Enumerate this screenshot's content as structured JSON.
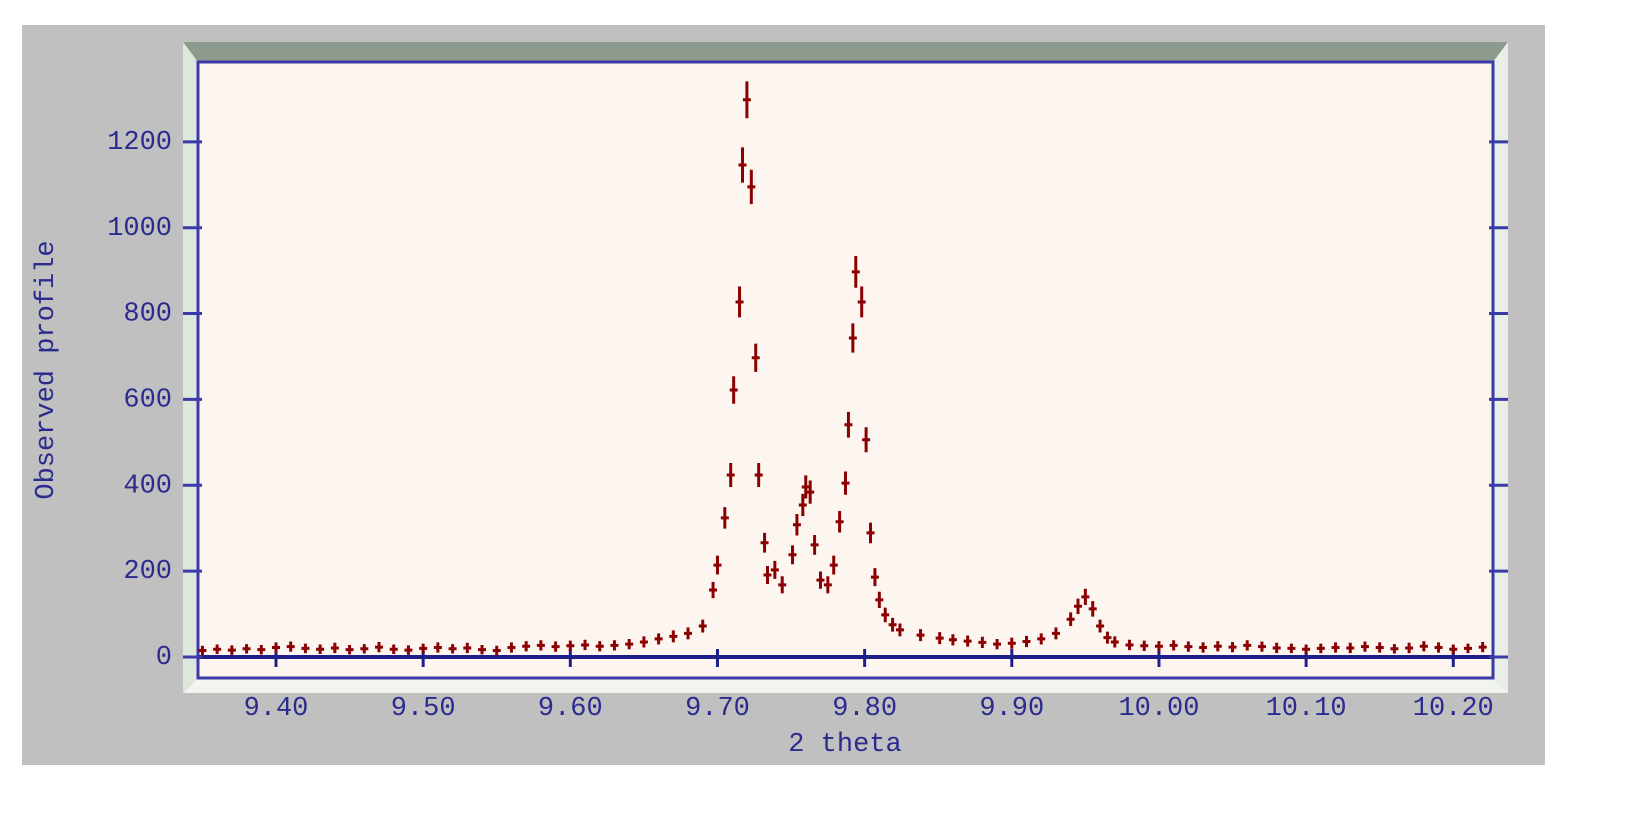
{
  "chart_data": {
    "type": "scatter",
    "xlabel": "2 theta",
    "ylabel": "Observed profile",
    "color": "#8b0000",
    "x": [
      9.35,
      9.36,
      9.37,
      9.38,
      9.39,
      9.4,
      9.41,
      9.42,
      9.43,
      9.44,
      9.45,
      9.46,
      9.47,
      9.48,
      9.49,
      9.5,
      9.51,
      9.52,
      9.53,
      9.54,
      9.55,
      9.56,
      9.57,
      9.58,
      9.59,
      9.6,
      9.61,
      9.62,
      9.63,
      9.64,
      9.65,
      9.66,
      9.67,
      9.68,
      9.69,
      9.697,
      9.7,
      9.705,
      9.709,
      9.711,
      9.715,
      9.717,
      9.72,
      9.723,
      9.726,
      9.728,
      9.732,
      9.734,
      9.739,
      9.744,
      9.751,
      9.754,
      9.758,
      9.76,
      9.763,
      9.766,
      9.77,
      9.775,
      9.779,
      9.783,
      9.787,
      9.789,
      9.792,
      9.794,
      9.798,
      9.801,
      9.804,
      9.807,
      9.81,
      9.814,
      9.819,
      9.824,
      9.838,
      9.851,
      9.86,
      9.87,
      9.88,
      9.89,
      9.9,
      9.91,
      9.92,
      9.93,
      9.94,
      9.945,
      9.95,
      9.955,
      9.96,
      9.965,
      9.97,
      9.98,
      9.99,
      10.0,
      10.01,
      10.02,
      10.03,
      10.04,
      10.05,
      10.06,
      10.07,
      10.08,
      10.09,
      10.1,
      10.11,
      10.12,
      10.13,
      10.14,
      10.15,
      10.16,
      10.17,
      10.18,
      10.19,
      10.2,
      10.21,
      10.22
    ],
    "values": [
      15,
      18,
      16,
      19,
      17,
      22,
      24,
      20,
      18,
      21,
      17,
      19,
      23,
      18,
      16,
      20,
      22,
      19,
      21,
      17,
      15,
      22,
      25,
      27,
      24,
      26,
      28,
      25,
      27,
      30,
      35,
      42,
      48,
      55,
      72,
      156,
      214,
      324,
      424,
      622,
      827,
      1146,
      1298,
      1095,
      697,
      424,
      266,
      191,
      203,
      168,
      238,
      308,
      354,
      396,
      384,
      261,
      179,
      168,
      214,
      315,
      405,
      541,
      743,
      897,
      827,
      506,
      289,
      186,
      133,
      98,
      75,
      63,
      51,
      44,
      40,
      37,
      34,
      30,
      32,
      36,
      42,
      55,
      88,
      118,
      140,
      112,
      72,
      45,
      35,
      28,
      26,
      25,
      27,
      24,
      22,
      25,
      23,
      27,
      24,
      21,
      20,
      18,
      20,
      22,
      21,
      24,
      22,
      19,
      21,
      25,
      22,
      18,
      20,
      23
    ],
    "errors": [
      4,
      4,
      4,
      4,
      4,
      5,
      5,
      4,
      4,
      5,
      4,
      4,
      5,
      4,
      4,
      4,
      5,
      4,
      5,
      4,
      4,
      5,
      5,
      5,
      5,
      5,
      5,
      5,
      5,
      5,
      6,
      6,
      7,
      7,
      8,
      12,
      15,
      18,
      21,
      25,
      29,
      34,
      36,
      33,
      26,
      21,
      16,
      14,
      14,
      13,
      15,
      18,
      19,
      20,
      20,
      16,
      13,
      13,
      15,
      18,
      20,
      23,
      27,
      30,
      29,
      22,
      17,
      14,
      12,
      10,
      9,
      8,
      7,
      7,
      6,
      6,
      6,
      5,
      6,
      6,
      6,
      7,
      9,
      11,
      12,
      11,
      8,
      7,
      6,
      5,
      5,
      5,
      5,
      5,
      5,
      5,
      5,
      5,
      5,
      5,
      4,
      4,
      4,
      5,
      5,
      5,
      5,
      4,
      5,
      5,
      5,
      4,
      4,
      5
    ],
    "xlim": [
      9.347,
      10.227
    ],
    "ylim": [
      -49,
      1386
    ],
    "xticks": [
      {
        "value": 9.4,
        "label": "9.40"
      },
      {
        "value": 9.5,
        "label": "9.50"
      },
      {
        "value": 9.6,
        "label": "9.60"
      },
      {
        "value": 9.7,
        "label": "9.70"
      },
      {
        "value": 9.8,
        "label": "9.80"
      },
      {
        "value": 9.9,
        "label": "9.90"
      },
      {
        "value": 10,
        "label": "10.00"
      },
      {
        "value": 10.1,
        "label": "10.10"
      },
      {
        "value": 10.2,
        "label": "10.20"
      }
    ],
    "yticks": [
      0,
      200,
      400,
      600,
      800,
      1000,
      1200
    ]
  }
}
